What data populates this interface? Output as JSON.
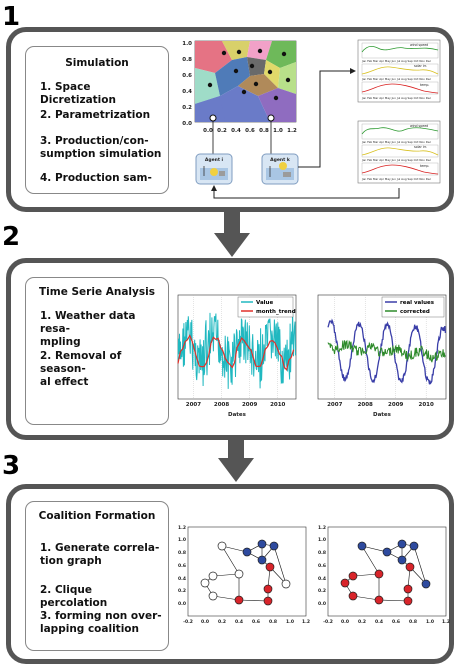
{
  "steps": [
    "1",
    "2",
    "3"
  ],
  "panel1": {
    "title": "Simulation",
    "items": [
      "1. Space Dicretization",
      "2. Parametrization",
      "3. Production/con-\nsumption simulation",
      "4. Production sam-"
    ],
    "voronoi_yticks": [
      "1.0",
      "0.8",
      "0.6",
      "0.4",
      "0.2",
      "0.0"
    ],
    "voronoi_xticks": [
      "0.0",
      "0.2",
      "0.4",
      "0.6",
      "0.8",
      "1.0",
      "1.2"
    ],
    "agent_labels": [
      "Agent i",
      "Agent k"
    ],
    "mini_legends": [
      "wind speed",
      "solar irr.",
      "temp."
    ],
    "mini_months": "Jan Feb Mar Apr May Jun Jul Aug Sep Oct Nov Dec"
  },
  "panel2": {
    "title": "Time Serie Analysis",
    "items": [
      "1. Weather data resa-\nmpling",
      "2. Removal of season-\nal effect"
    ],
    "chart_data": [
      {
        "type": "line",
        "legend": [
          "Value",
          "month_trend"
        ],
        "colors": [
          "#20b8c0",
          "#e0302a"
        ],
        "xticks": [
          "2007",
          "2008",
          "2009",
          "2010"
        ],
        "xlabel": "Dates",
        "years": 4.2,
        "grid": true
      },
      {
        "type": "line",
        "legend": [
          "real values",
          "corrected"
        ],
        "colors": [
          "#3a3ea8",
          "#2d8a2a"
        ],
        "xticks": [
          "2007",
          "2008",
          "2009",
          "2010"
        ],
        "xlabel": "Dates",
        "years": 4.2,
        "grid": true
      }
    ]
  },
  "panel3": {
    "title": "Coalition Formation",
    "items": [
      "1. Generate correla-\ntion graph",
      "2. Clique percolation",
      "3. forming non over-\nlapping coalition"
    ],
    "yticks": [
      "1.2",
      "1.0",
      "0.8",
      "0.6",
      "0.4",
      "0.2",
      "0.0"
    ],
    "xticks": [
      "-0.2",
      "0.0",
      "0.2",
      "0.4",
      "0.6",
      "0.8",
      "1.0",
      "1.2"
    ],
    "colors": {
      "blue": "#2e4a9e",
      "red": "#d8242a",
      "white": "#ffffff"
    }
  }
}
